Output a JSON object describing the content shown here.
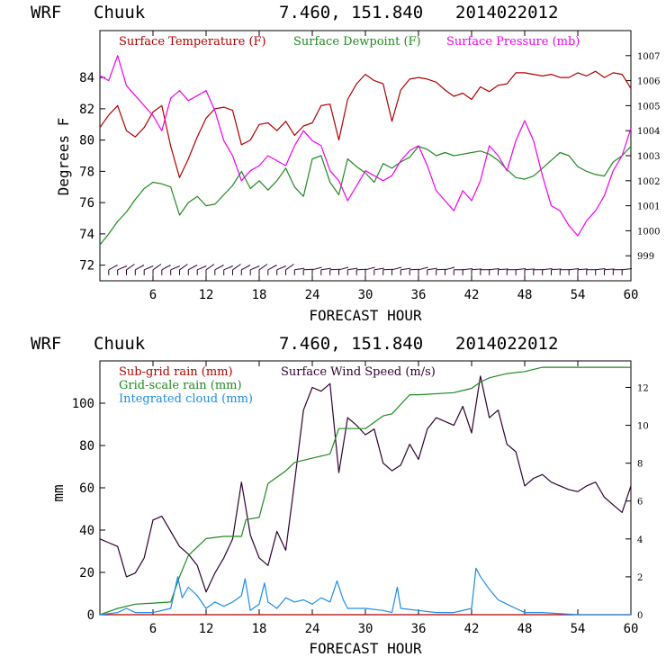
{
  "colors": {
    "temperature": "#b00000",
    "dewpoint": "#1f8a1f",
    "pressure": "#ee00ee",
    "wind_speed": "#300030",
    "cloud": "#1e8ce6",
    "barbs": "#300030"
  },
  "panels": [
    {
      "header": {
        "model": "WRF",
        "station": "Chuuk",
        "coords": "7.460, 151.840",
        "init": "2014022012"
      },
      "xlabel": "FORECAST HOUR",
      "ylabel": "Degrees F",
      "legend": [
        "Surface Temperature (F)",
        "Surface Dewpoint (F)",
        "Surface Pressure (mb)"
      ]
    },
    {
      "header": {
        "model": "WRF",
        "station": "Chuuk",
        "coords": "7.460, 151.840",
        "init": "2014022012"
      },
      "xlabel": "FORECAST HOUR",
      "ylabel": "mm",
      "legend": [
        "Sub-grid rain (mm)",
        "Surface Wind Speed (m/s)",
        "Grid-scale rain (mm)",
        "Integrated cloud (mm)"
      ]
    }
  ],
  "chart_data": [
    {
      "type": "line",
      "xlabel": "FORECAST HOUR",
      "ylabel": "Degrees F",
      "xlim": [
        0,
        60
      ],
      "ylim": [
        71,
        87
      ],
      "y2lim": [
        998,
        1008
      ],
      "xticks": [
        6,
        12,
        18,
        24,
        30,
        36,
        42,
        48,
        54,
        60
      ],
      "yticks": [
        72,
        74,
        76,
        78,
        80,
        82,
        84
      ],
      "y2ticks": [
        999,
        1000,
        1001,
        1002,
        1003,
        1004,
        1005,
        1006,
        1007
      ],
      "legend_position": "top",
      "grid": false,
      "series": [
        {
          "name": "Surface Temperature (F)",
          "axis": "left",
          "x": [
            0,
            1,
            2,
            3,
            4,
            5,
            6,
            7,
            8,
            9,
            10,
            11,
            12,
            13,
            14,
            15,
            16,
            17,
            18,
            19,
            20,
            21,
            22,
            23,
            24,
            25,
            26,
            27,
            28,
            29,
            30,
            31,
            32,
            33,
            34,
            35,
            36,
            37,
            38,
            39,
            40,
            41,
            42,
            43,
            44,
            45,
            46,
            47,
            48,
            49,
            50,
            51,
            52,
            53,
            54,
            55,
            56,
            57,
            58,
            59,
            60
          ],
          "y": [
            80.8,
            81.6,
            82.2,
            80.6,
            80.2,
            80.8,
            81.8,
            82.2,
            79.6,
            77.6,
            78.8,
            80.2,
            81.4,
            82.0,
            82.1,
            81.9,
            79.7,
            80.0,
            81.0,
            81.1,
            80.6,
            81.2,
            80.3,
            80.9,
            81.1,
            82.2,
            82.3,
            80.0,
            82.6,
            83.6,
            84.2,
            83.8,
            83.6,
            81.2,
            83.2,
            83.9,
            84.0,
            83.9,
            83.7,
            83.2,
            82.8,
            83.0,
            82.6,
            83.4,
            83.1,
            83.5,
            83.6,
            84.3,
            84.3,
            84.2,
            84.1,
            84.2,
            84.0,
            84.0,
            84.3,
            84.1,
            84.4,
            84.0,
            84.3,
            84.2,
            83.3
          ]
        },
        {
          "name": "Surface Dewpoint (F)",
          "axis": "left",
          "x": [
            0,
            1,
            2,
            3,
            4,
            5,
            6,
            7,
            8,
            9,
            10,
            11,
            12,
            13,
            14,
            15,
            16,
            17,
            18,
            19,
            20,
            21,
            22,
            23,
            24,
            25,
            26,
            27,
            28,
            29,
            30,
            31,
            32,
            33,
            34,
            35,
            36,
            37,
            38,
            39,
            40,
            41,
            42,
            43,
            44,
            45,
            46,
            47,
            48,
            49,
            50,
            51,
            52,
            53,
            54,
            55,
            56,
            57,
            58,
            59,
            60
          ],
          "y": [
            73.3,
            74.0,
            74.8,
            75.4,
            76.2,
            76.9,
            77.3,
            77.2,
            77.0,
            75.2,
            76.0,
            76.4,
            75.8,
            75.9,
            76.5,
            77.1,
            78.0,
            76.9,
            77.4,
            76.8,
            77.4,
            78.2,
            77.0,
            76.4,
            78.8,
            79.0,
            77.3,
            76.5,
            78.8,
            78.3,
            77.9,
            77.3,
            78.5,
            78.2,
            78.6,
            78.9,
            79.6,
            79.4,
            79.0,
            79.2,
            79.0,
            79.1,
            79.2,
            79.3,
            79.1,
            78.7,
            78.1,
            77.6,
            77.5,
            77.7,
            78.2,
            78.7,
            79.2,
            79.0,
            78.3,
            78.0,
            77.8,
            77.7,
            78.6,
            79.0,
            79.6
          ]
        },
        {
          "name": "Surface Pressure (mb)",
          "axis": "right",
          "x": [
            0,
            1,
            2,
            3,
            4,
            5,
            6,
            7,
            8,
            9,
            10,
            11,
            12,
            13,
            14,
            15,
            16,
            17,
            18,
            19,
            20,
            21,
            22,
            23,
            24,
            25,
            26,
            27,
            28,
            29,
            30,
            31,
            32,
            33,
            34,
            35,
            36,
            37,
            38,
            39,
            40,
            41,
            42,
            43,
            44,
            45,
            46,
            47,
            48,
            49,
            50,
            51,
            52,
            53,
            54,
            55,
            56,
            57,
            58,
            59,
            60
          ],
          "y": [
            1006.2,
            1006.0,
            1007.0,
            1005.8,
            1005.4,
            1005.0,
            1004.6,
            1004.0,
            1005.3,
            1005.6,
            1005.2,
            1005.4,
            1005.6,
            1004.8,
            1003.6,
            1003.0,
            1002.0,
            1002.4,
            1002.6,
            1003.0,
            1002.8,
            1002.6,
            1003.4,
            1004.0,
            1003.6,
            1003.4,
            1002.4,
            1002.0,
            1001.2,
            1001.8,
            1002.4,
            1002.2,
            1002.0,
            1002.2,
            1002.8,
            1003.2,
            1003.4,
            1002.6,
            1001.6,
            1001.2,
            1000.8,
            1001.6,
            1001.2,
            1002.0,
            1003.4,
            1003.0,
            1002.4,
            1003.6,
            1004.4,
            1003.6,
            1002.2,
            1001.0,
            1000.8,
            1000.2,
            999.8,
            1000.4,
            1000.8,
            1001.4,
            1002.4,
            1003.0,
            1004.1
          ]
        }
      ],
      "wind_barbs": true
    },
    {
      "type": "line",
      "xlabel": "FORECAST HOUR",
      "ylabel": "mm",
      "xlim": [
        0,
        60
      ],
      "ylim": [
        0,
        120
      ],
      "y2lim": [
        0,
        13.4
      ],
      "xticks": [
        6,
        12,
        18,
        24,
        30,
        36,
        42,
        48,
        54,
        60
      ],
      "yticks": [
        0,
        20,
        40,
        60,
        80,
        100
      ],
      "y2ticks": [
        0,
        2,
        4,
        6,
        8,
        10,
        12
      ],
      "legend_position": "top-left",
      "grid": false,
      "series": [
        {
          "name": "Sub-grid rain (mm)",
          "axis": "left",
          "x": [
            0,
            60
          ],
          "y": [
            0,
            0
          ]
        },
        {
          "name": "Surface Wind Speed (m/s)",
          "axis": "right",
          "x": [
            0,
            1,
            2,
            3,
            4,
            5,
            6,
            7,
            8,
            9,
            10,
            11,
            12,
            13,
            14,
            15,
            16,
            17,
            18,
            19,
            20,
            21,
            22,
            23,
            24,
            25,
            26,
            27,
            28,
            29,
            30,
            31,
            32,
            33,
            34,
            35,
            36,
            37,
            38,
            39,
            40,
            41,
            42,
            43,
            44,
            45,
            46,
            47,
            48,
            49,
            50,
            51,
            52,
            53,
            54,
            55,
            56,
            57,
            58,
            59,
            60
          ],
          "y": [
            4.0,
            3.8,
            3.6,
            2.0,
            2.2,
            3.0,
            5.0,
            5.2,
            4.4,
            3.6,
            3.2,
            2.6,
            1.2,
            2.2,
            3.0,
            4.0,
            7.0,
            4.2,
            3.0,
            2.6,
            4.4,
            3.4,
            7.0,
            10.8,
            12.0,
            11.8,
            12.2,
            7.5,
            10.4,
            10.0,
            9.5,
            9.8,
            8.0,
            7.6,
            7.9,
            9.0,
            8.2,
            9.8,
            10.4,
            10.2,
            10.0,
            11.0,
            9.6,
            12.6,
            10.4,
            10.8,
            9.0,
            8.6,
            6.8,
            7.2,
            7.4,
            7.0,
            6.8,
            6.6,
            6.5,
            6.8,
            7.0,
            6.2,
            5.8,
            5.4,
            6.8
          ]
        },
        {
          "name": "Grid-scale rain (mm)",
          "axis": "left",
          "x": [
            0,
            2,
            4,
            6,
            8,
            9,
            10,
            12,
            14,
            16,
            16.5,
            18,
            19,
            21,
            22,
            24,
            26,
            27,
            30,
            32,
            33,
            35,
            36,
            40,
            42,
            43,
            44,
            46,
            48,
            50,
            52,
            54,
            56,
            58,
            60
          ],
          "y": [
            0,
            3,
            5,
            5.5,
            6,
            18,
            28,
            36,
            37,
            37,
            45,
            46,
            62,
            68,
            72,
            74,
            76,
            88,
            88,
            94,
            95,
            104,
            104,
            105,
            107,
            110,
            112,
            114,
            115,
            117,
            117,
            117,
            117,
            117,
            117
          ]
        },
        {
          "name": "Integrated cloud (mm)",
          "axis": "left",
          "x": [
            0,
            2,
            3,
            4,
            6,
            8,
            8.8,
            9.3,
            10,
            11,
            12,
            13,
            14,
            15,
            16,
            16.4,
            17,
            18,
            18.6,
            19,
            20,
            21,
            22,
            23,
            24,
            25,
            26,
            26.8,
            27.5,
            28,
            30,
            32,
            33,
            33.6,
            34,
            36,
            38,
            40,
            42,
            42.5,
            43,
            44,
            45,
            46,
            47,
            48,
            50,
            52,
            54,
            56,
            58,
            60
          ],
          "y": [
            0,
            1,
            3,
            1,
            1,
            3,
            18,
            8,
            13,
            9,
            3,
            6,
            4,
            6,
            9,
            17,
            2,
            5,
            15,
            6,
            3,
            8,
            6,
            7,
            5,
            8,
            6,
            16,
            7,
            3,
            3,
            2,
            1,
            13,
            3,
            2,
            1,
            1,
            3,
            22,
            18,
            12,
            7,
            5,
            3,
            1,
            1,
            0.5,
            0,
            0,
            0,
            0
          ]
        }
      ]
    }
  ]
}
